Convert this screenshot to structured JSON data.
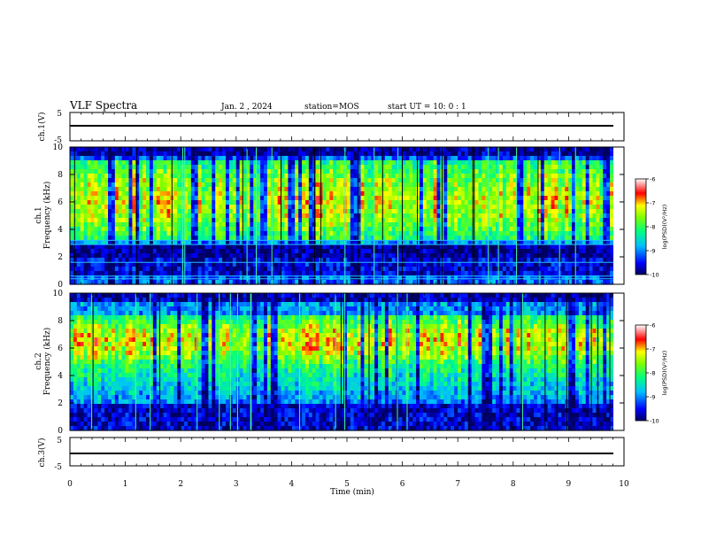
{
  "header": {
    "title": "VLF Spectra",
    "date": "Jan. 2 , 2024",
    "station": "station=MOS",
    "start_ut": "start UT =  10: 0 : 1"
  },
  "chart_data": [
    {
      "type": "line",
      "name": "ch1-voltage",
      "ylabel": "ch.1(V)",
      "ylim": [
        -5,
        5
      ],
      "yticks": [
        "5",
        "-5"
      ],
      "xlim": [
        0,
        10
      ],
      "x": [
        0,
        10
      ],
      "y": [
        0.2,
        0.2
      ]
    },
    {
      "type": "heatmap",
      "name": "ch1-spectrogram",
      "ylabel": "ch.1 Frequency (kHz)",
      "ylim": [
        0,
        10
      ],
      "yticks": [
        "0",
        "2",
        "4",
        "6",
        "8",
        "10"
      ],
      "xlim": [
        0,
        10
      ],
      "colorbar": {
        "label": "log(PSD)(V²/Hz)",
        "range": [
          -10,
          -6
        ],
        "ticks": [
          "-6",
          "-7",
          "-8",
          "-9",
          "-10"
        ]
      }
    },
    {
      "type": "heatmap",
      "name": "ch2-spectrogram",
      "ylabel": "ch.2 Frequency (kHz)",
      "ylim": [
        0,
        10
      ],
      "yticks": [
        "0",
        "2",
        "4",
        "6",
        "8",
        "10"
      ],
      "xlim": [
        0,
        10
      ],
      "colorbar": {
        "label": "log(PSD)(V²/Hz)",
        "range": [
          -10,
          -6
        ],
        "ticks": [
          "-6",
          "-7",
          "-8",
          "-9",
          "-10"
        ]
      }
    },
    {
      "type": "line",
      "name": "ch3-voltage",
      "ylabel": "ch.3(V)",
      "ylim": [
        -5,
        5
      ],
      "yticks": [
        "5",
        "-5"
      ],
      "xlim": [
        0,
        10
      ],
      "x": [
        0,
        10
      ],
      "y": [
        0.2,
        0.2
      ]
    }
  ],
  "xaxis": {
    "label": "Time (min)",
    "ticks": [
      "0",
      "1",
      "2",
      "3",
      "4",
      "5",
      "6",
      "7",
      "8",
      "9",
      "10"
    ]
  }
}
